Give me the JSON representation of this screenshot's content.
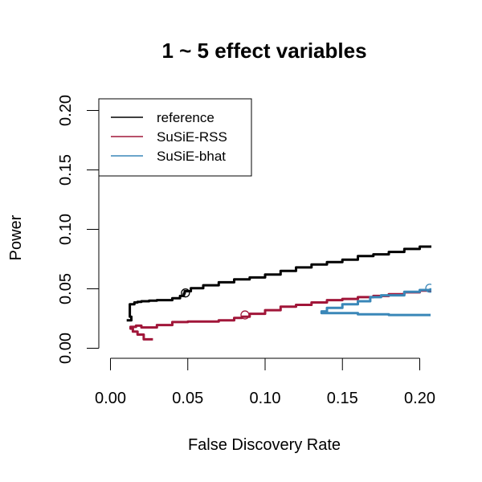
{
  "chart_data": {
    "type": "line",
    "title": "1 ~ 5 effect variables",
    "xlabel": "False Discovery Rate",
    "ylabel": "Power",
    "xlim": [
      0,
      0.2
    ],
    "ylim": [
      0,
      0.2
    ],
    "x_ticks": [
      "0.00",
      "0.05",
      "0.10",
      "0.15",
      "0.20"
    ],
    "y_ticks": [
      "0.00",
      "0.05",
      "0.10",
      "0.15",
      "0.20"
    ],
    "x_tick_values": [
      0,
      0.05,
      0.1,
      0.15,
      0.2
    ],
    "y_tick_values": [
      0,
      0.05,
      0.1,
      0.15,
      0.2
    ],
    "legend_position": "top-left",
    "series": [
      {
        "name": "reference",
        "color": "#000000",
        "points": [
          [
            0.0105,
            0.0235
          ],
          [
            0.0135,
            0.0265
          ],
          [
            0.0125,
            0.037
          ],
          [
            0.0155,
            0.0385
          ],
          [
            0.0175,
            0.039
          ],
          [
            0.02,
            0.0395
          ],
          [
            0.025,
            0.04
          ],
          [
            0.03,
            0.0405
          ],
          [
            0.04,
            0.042
          ],
          [
            0.045,
            0.044
          ],
          [
            0.0475,
            0.046
          ],
          [
            0.048,
            0.048
          ],
          [
            0.052,
            0.0505
          ],
          [
            0.06,
            0.053
          ],
          [
            0.07,
            0.0555
          ],
          [
            0.08,
            0.058
          ],
          [
            0.09,
            0.0595
          ],
          [
            0.1,
            0.062
          ],
          [
            0.11,
            0.065
          ],
          [
            0.12,
            0.068
          ],
          [
            0.13,
            0.0705
          ],
          [
            0.14,
            0.0725
          ],
          [
            0.15,
            0.0745
          ],
          [
            0.16,
            0.0775
          ],
          [
            0.17,
            0.079
          ],
          [
            0.18,
            0.081
          ],
          [
            0.19,
            0.0835
          ],
          [
            0.2,
            0.0855
          ],
          [
            0.207,
            0.0865
          ]
        ],
        "marker": [
          0.0485,
          0.0465
        ]
      },
      {
        "name": "SuSiE-RSS",
        "color": "#a11639",
        "points": [
          [
            0.0275,
            0.0075
          ],
          [
            0.0215,
            0.0115
          ],
          [
            0.0175,
            0.014
          ],
          [
            0.0145,
            0.0165
          ],
          [
            0.013,
            0.018
          ],
          [
            0.0165,
            0.019
          ],
          [
            0.02,
            0.0175
          ],
          [
            0.03,
            0.0195
          ],
          [
            0.04,
            0.022
          ],
          [
            0.05,
            0.0225
          ],
          [
            0.06,
            0.0225
          ],
          [
            0.07,
            0.0235
          ],
          [
            0.08,
            0.0255
          ],
          [
            0.085,
            0.0265
          ],
          [
            0.09,
            0.029
          ],
          [
            0.1,
            0.032
          ],
          [
            0.11,
            0.035
          ],
          [
            0.12,
            0.0365
          ],
          [
            0.13,
            0.0385
          ],
          [
            0.14,
            0.0405
          ],
          [
            0.15,
            0.0415
          ],
          [
            0.16,
            0.043
          ],
          [
            0.17,
            0.044
          ],
          [
            0.18,
            0.0455
          ],
          [
            0.19,
            0.047
          ],
          [
            0.2,
            0.0485
          ],
          [
            0.207,
            0.049
          ]
        ],
        "marker": [
          0.087,
          0.028
        ]
      },
      {
        "name": "SuSiE-bhat",
        "color": "#3a87b8",
        "points": [
          [
            0.207,
            0.028
          ],
          [
            0.18,
            0.0285
          ],
          [
            0.16,
            0.0295
          ],
          [
            0.1365,
            0.031
          ],
          [
            0.14,
            0.034
          ],
          [
            0.15,
            0.037
          ],
          [
            0.16,
            0.0395
          ],
          [
            0.168,
            0.043
          ],
          [
            0.175,
            0.0445
          ],
          [
            0.19,
            0.0475
          ],
          [
            0.2,
            0.049
          ],
          [
            0.207,
            0.0505
          ]
        ],
        "marker": [
          0.2065,
          0.0505
        ]
      }
    ]
  }
}
